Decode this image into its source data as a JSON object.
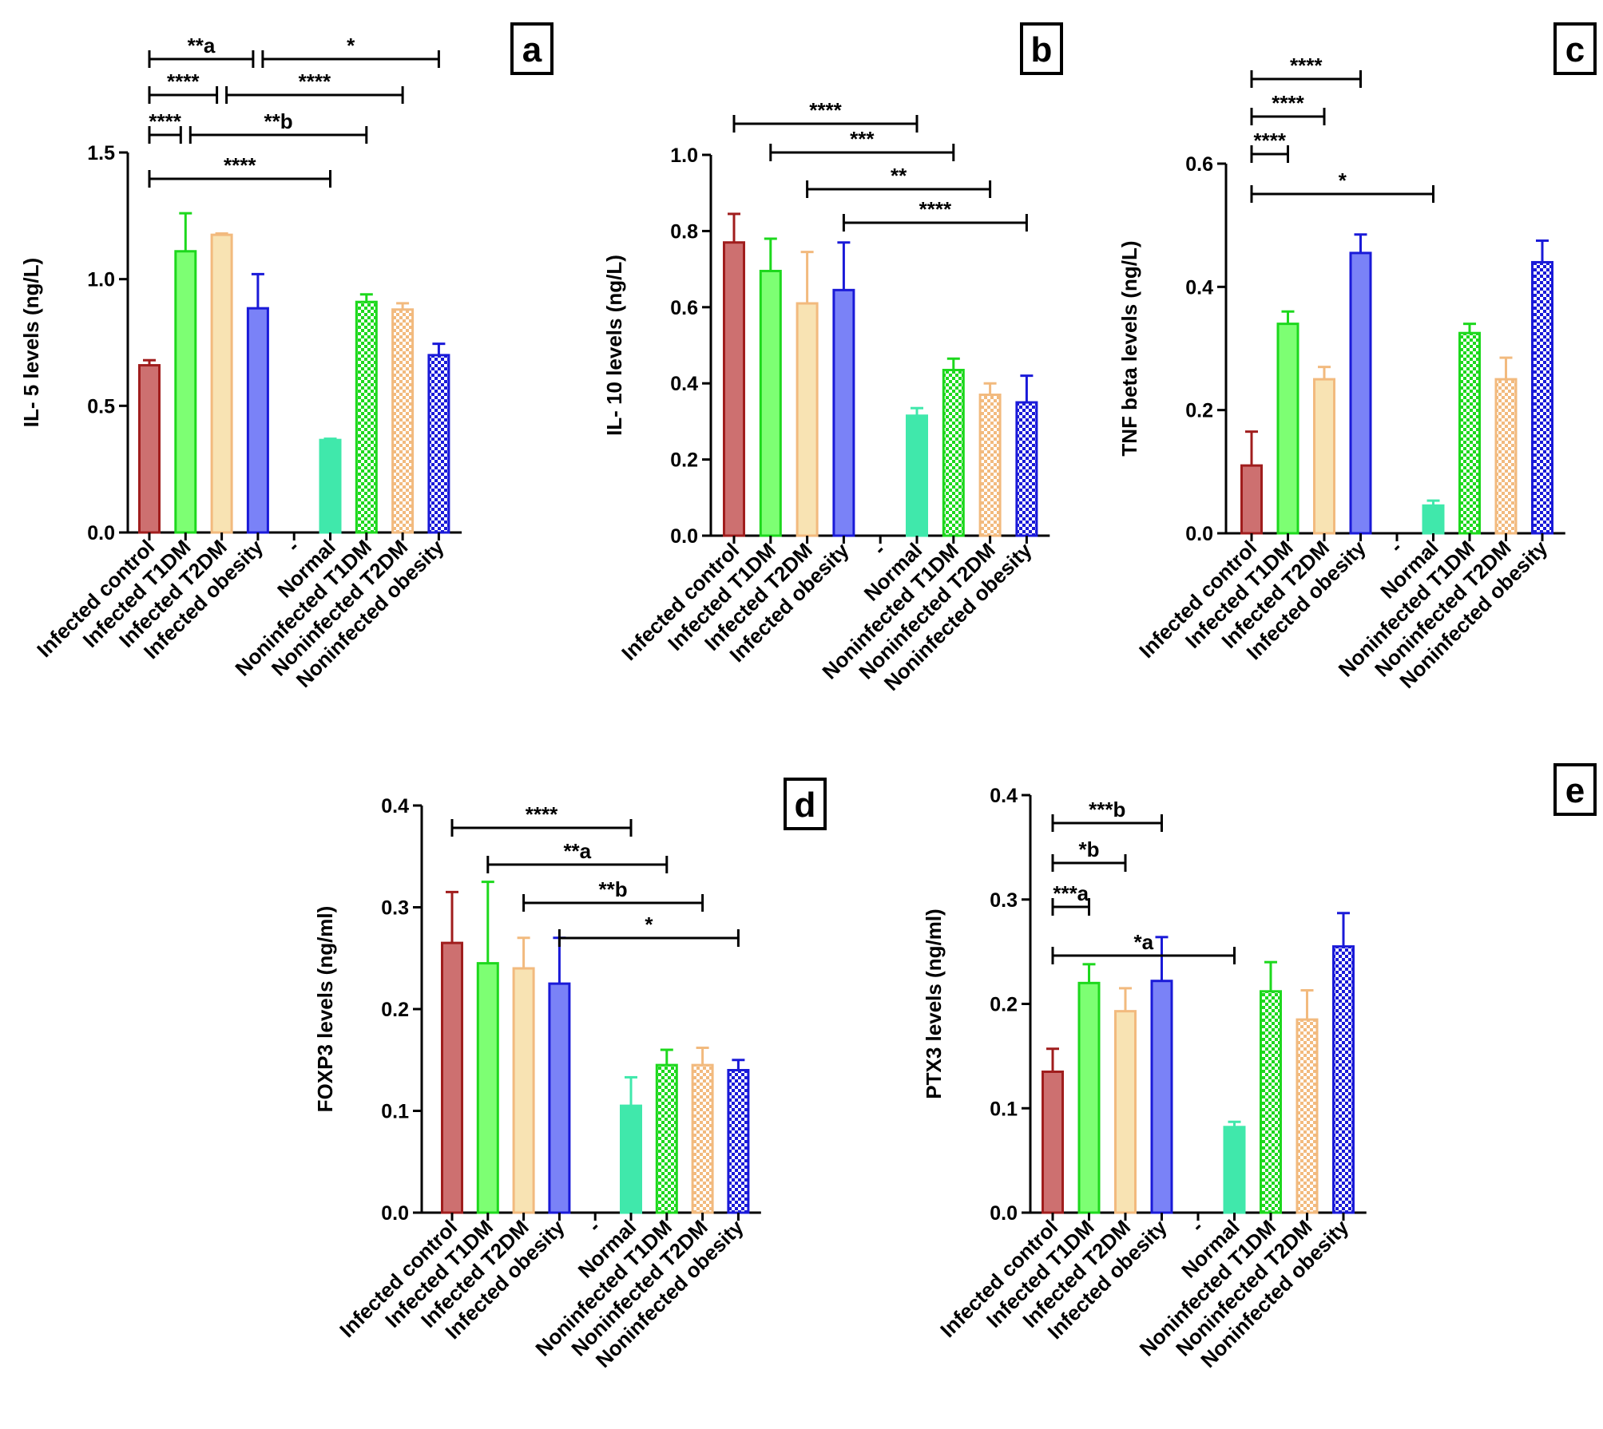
{
  "figure": {
    "categories": [
      "Infected control",
      "Infected T1DM",
      "Infected T2DM",
      "Infected obesity",
      "-",
      "Normal",
      "Noninfected T1DM",
      "Noninfected T2DM",
      "Noninfected obesity"
    ],
    "colors": {
      "control_fill": "#cd7070",
      "control_stroke": "#a01d1d",
      "t1dm_fill": "#7dff73",
      "t1dm_stroke": "#1dd81d",
      "t2dm_fill": "#f8e3b3",
      "t2dm_stroke": "#f2ba7e",
      "obesity_fill": "#7a82f7",
      "obesity_stroke": "#1a1ad8",
      "normal_fill": "#40e8ab",
      "normal_stroke": "#40e8ab"
    }
  },
  "chart_data": [
    {
      "panel": "a",
      "type": "bar",
      "ylabel": "IL- 5 levels (ng/L)",
      "ylim": [
        0,
        1.5
      ],
      "ticks": [
        0.0,
        0.5,
        1.0,
        1.5
      ],
      "tick_labels": [
        "0.0",
        "0.5",
        "1.0",
        "1.5"
      ],
      "values": [
        0.66,
        1.11,
        1.175,
        0.885,
        null,
        0.365,
        0.91,
        0.88,
        0.7
      ],
      "errors": [
        0.02,
        0.15,
        0.005,
        0.135,
        null,
        0.005,
        0.03,
        0.025,
        0.045
      ],
      "comparisons": [
        {
          "i": 0,
          "j": 3,
          "label": "**a"
        },
        {
          "i": 3,
          "j": 8,
          "label": "*"
        },
        {
          "i": 0,
          "j": 2,
          "label": "****"
        },
        {
          "i": 2,
          "j": 7,
          "label": "****"
        },
        {
          "i": 0,
          "j": 1,
          "label": "****"
        },
        {
          "i": 1,
          "j": 6,
          "label": "**b"
        },
        {
          "i": 0,
          "j": 5,
          "label": "****"
        }
      ]
    },
    {
      "panel": "b",
      "type": "bar",
      "ylabel": "IL- 10 levels (ng/L)",
      "ylim": [
        0,
        1.0
      ],
      "ticks": [
        0.0,
        0.2,
        0.4,
        0.6,
        0.8,
        1.0
      ],
      "tick_labels": [
        "0.0",
        "0.2",
        "0.4",
        "0.6",
        "0.8",
        "1.0"
      ],
      "values": [
        0.77,
        0.695,
        0.61,
        0.645,
        null,
        0.315,
        0.435,
        0.37,
        0.35
      ],
      "errors": [
        0.075,
        0.085,
        0.135,
        0.125,
        null,
        0.02,
        0.03,
        0.03,
        0.07
      ],
      "comparisons": [
        {
          "i": 0,
          "j": 5,
          "label": "****"
        },
        {
          "i": 1,
          "j": 6,
          "label": "***"
        },
        {
          "i": 2,
          "j": 7,
          "label": "**"
        },
        {
          "i": 3,
          "j": 8,
          "label": "****"
        }
      ]
    },
    {
      "panel": "c",
      "type": "bar",
      "ylabel": "TNF beta levels (ng/L)",
      "ylim": [
        0,
        0.6
      ],
      "ticks": [
        0.0,
        0.2,
        0.4,
        0.6
      ],
      "tick_labels": [
        "0.0",
        "0.2",
        "0.4",
        "0.6"
      ],
      "values": [
        0.11,
        0.34,
        0.25,
        0.455,
        null,
        0.045,
        0.325,
        0.25,
        0.44
      ],
      "errors": [
        0.055,
        0.02,
        0.02,
        0.03,
        null,
        0.008,
        0.015,
        0.035,
        0.035
      ],
      "comparisons": [
        {
          "i": 0,
          "j": 3,
          "label": "****"
        },
        {
          "i": 0,
          "j": 2,
          "label": "****"
        },
        {
          "i": 0,
          "j": 1,
          "label": "****"
        },
        {
          "i": 0,
          "j": 5,
          "label": "*"
        }
      ]
    },
    {
      "panel": "d",
      "type": "bar",
      "ylabel": "FOXP3 levels (ng/ml)",
      "ylim": [
        0,
        0.4
      ],
      "ticks": [
        0.0,
        0.1,
        0.2,
        0.3,
        0.4
      ],
      "tick_labels": [
        "0.0",
        "0.1",
        "0.2",
        "0.3",
        "0.4"
      ],
      "values": [
        0.265,
        0.245,
        0.24,
        0.225,
        null,
        0.105,
        0.145,
        0.145,
        0.14
      ],
      "errors": [
        0.05,
        0.08,
        0.03,
        0.045,
        null,
        0.028,
        0.015,
        0.017,
        0.01
      ],
      "comparisons": [
        {
          "i": 0,
          "j": 5,
          "label": "****"
        },
        {
          "i": 1,
          "j": 6,
          "label": "**a"
        },
        {
          "i": 2,
          "j": 7,
          "label": "**b"
        },
        {
          "i": 3,
          "j": 8,
          "label": "*"
        }
      ]
    },
    {
      "panel": "e",
      "type": "bar",
      "ylabel": "PTX3 levels (ng/ml)",
      "ylim": [
        0,
        0.4
      ],
      "ticks": [
        0.0,
        0.1,
        0.2,
        0.3,
        0.4
      ],
      "tick_labels": [
        "0.0",
        "0.1",
        "0.2",
        "0.3",
        "0.4"
      ],
      "values": [
        0.135,
        0.22,
        0.193,
        0.222,
        null,
        0.082,
        0.212,
        0.185,
        0.255
      ],
      "errors": [
        0.022,
        0.018,
        0.022,
        0.042,
        null,
        0.005,
        0.028,
        0.028,
        0.032
      ],
      "comparisons": [
        {
          "i": 0,
          "j": 3,
          "label": "***b"
        },
        {
          "i": 0,
          "j": 2,
          "label": "*b"
        },
        {
          "i": 0,
          "j": 1,
          "label": "***a"
        },
        {
          "i": 0,
          "j": 5,
          "label": "*a"
        }
      ]
    }
  ]
}
